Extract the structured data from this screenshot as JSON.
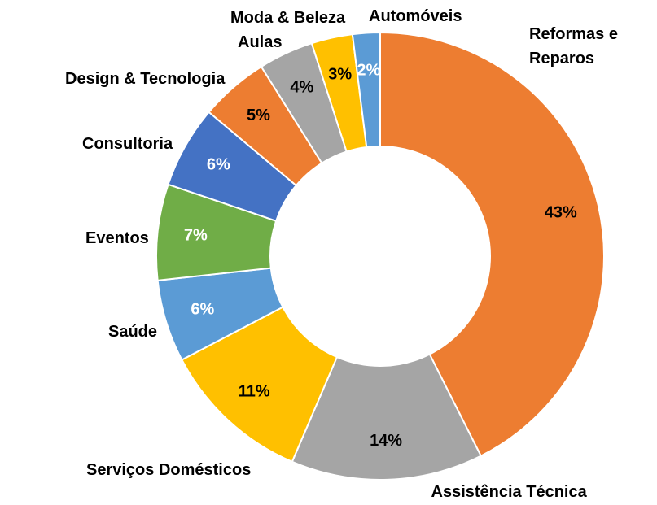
{
  "chart_data": {
    "type": "donut",
    "categories": [
      "Reformas e Reparos",
      "Assistência Técnica",
      "Serviços Domésticos",
      "Saúde",
      "Eventos",
      "Consultoria",
      "Design & Tecnologia",
      "Aulas",
      "Moda & Beleza",
      "Automóveis"
    ],
    "values": [
      43,
      14,
      11,
      6,
      7,
      6,
      5,
      4,
      3,
      2
    ],
    "value_labels": [
      "43%",
      "14%",
      "11%",
      "6%",
      "7%",
      "6%",
      "5%",
      "4%",
      "3%",
      "2%"
    ],
    "colors": [
      "#ED7D31",
      "#A5A5A5",
      "#FFC000",
      "#5B9BD5",
      "#70AD47",
      "#4472C4",
      "#ED7D31",
      "#A5A5A5",
      "#FFC000",
      "#5B9BD5"
    ],
    "value_label_colors": [
      "#000000",
      "#000000",
      "#000000",
      "#FFFFFF",
      "#FFFFFF",
      "#FFFFFF",
      "#000000",
      "#000000",
      "#000000",
      "#FFFFFF"
    ]
  }
}
